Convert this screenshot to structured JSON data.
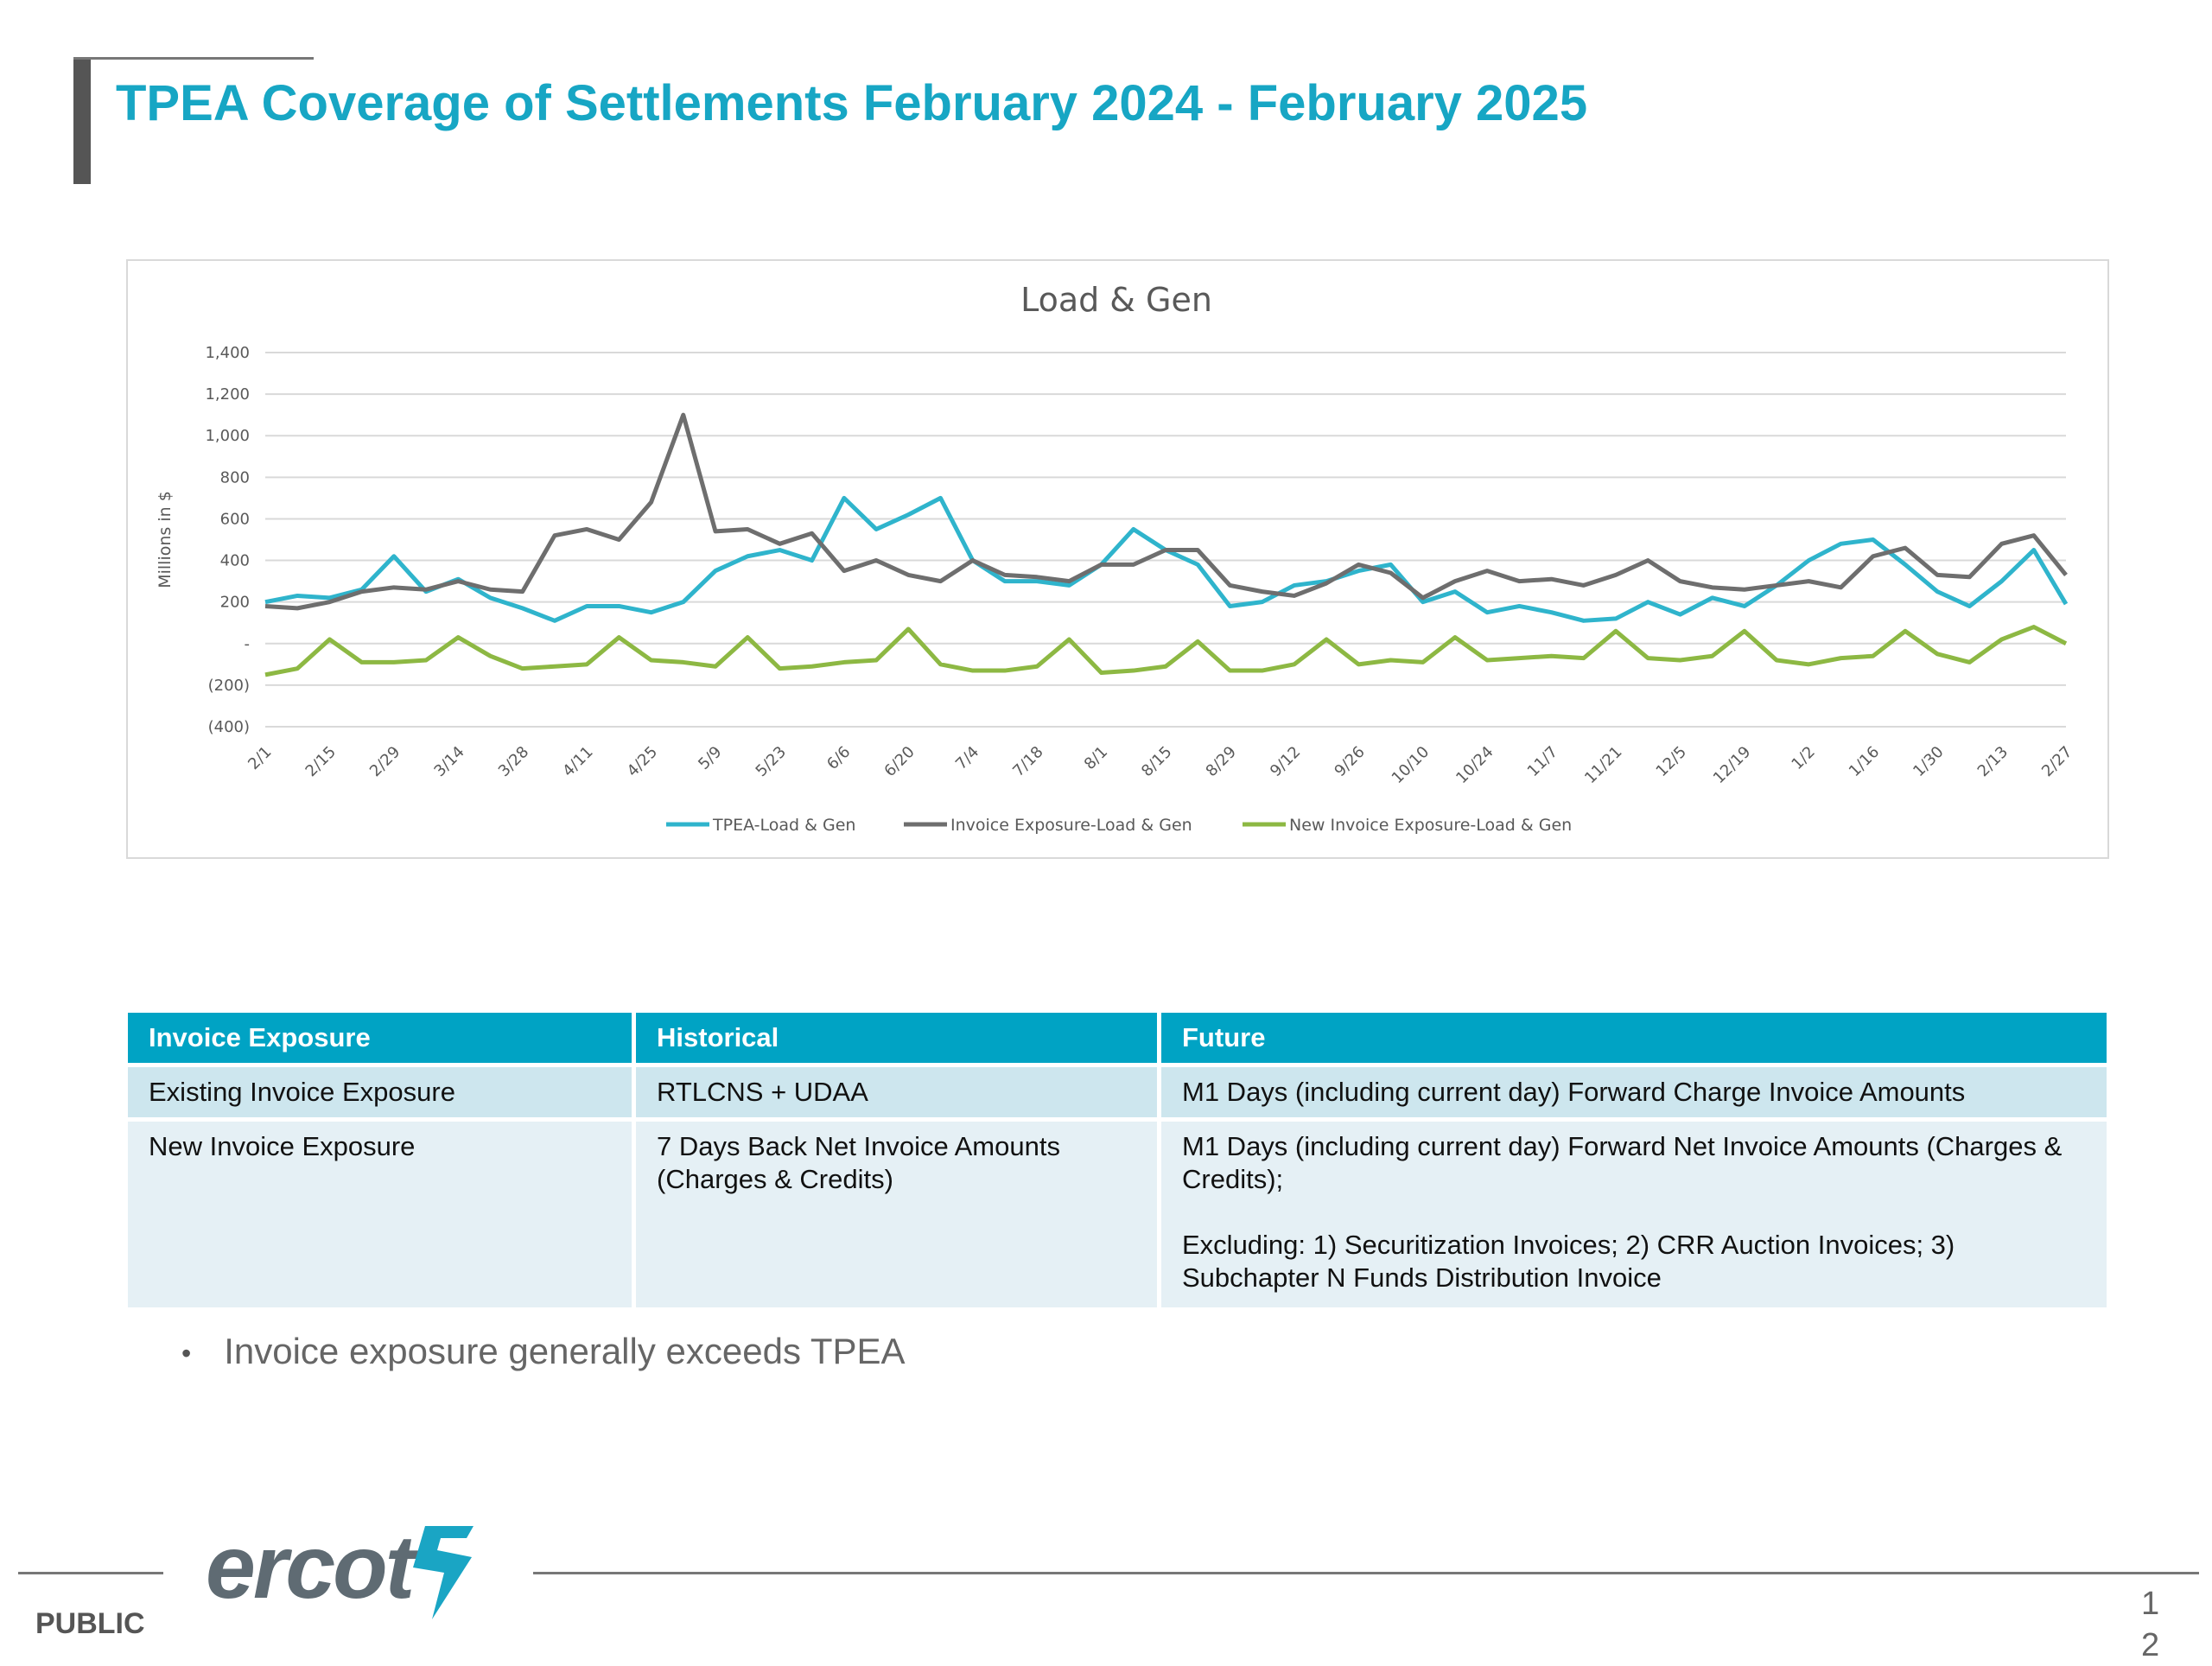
{
  "title": "TPEA Coverage of Settlements February 2024 - February 2025",
  "chart_data": {
    "type": "line",
    "title": "Load & Gen",
    "y_label": "Millions in $",
    "categories": [
      "2/1",
      null,
      "2/15",
      null,
      "2/29",
      null,
      "3/14",
      null,
      "3/28",
      null,
      "4/11",
      null,
      "4/25",
      null,
      "5/9",
      null,
      "5/23",
      null,
      "6/6",
      null,
      "6/20",
      null,
      "7/4",
      null,
      "7/18",
      null,
      "8/1",
      null,
      "8/15",
      null,
      "8/29",
      null,
      "9/12",
      null,
      "9/26",
      null,
      "10/10",
      null,
      "10/24",
      null,
      "11/7",
      null,
      "11/21",
      null,
      "12/5",
      null,
      "12/19",
      null,
      "1/2",
      null,
      "1/16",
      null,
      "1/30",
      null,
      "2/13",
      null,
      "2/27"
    ],
    "series": [
      {
        "name": "TPEA-Load & Gen",
        "color": "#2fb4cc",
        "values": [
          200,
          230,
          220,
          260,
          420,
          250,
          310,
          220,
          170,
          110,
          180,
          180,
          150,
          200,
          350,
          420,
          450,
          400,
          700,
          550,
          620,
          700,
          400,
          300,
          300,
          280,
          380,
          550,
          450,
          380,
          180,
          200,
          280,
          300,
          350,
          380,
          200,
          250,
          150,
          180,
          150,
          110,
          120,
          200,
          140,
          220,
          180,
          280,
          400,
          480,
          500,
          380,
          250,
          180,
          300,
          450,
          190
        ]
      },
      {
        "name": "Invoice Exposure-Load & Gen",
        "color": "#6e6e6e",
        "values": [
          180,
          170,
          200,
          250,
          270,
          260,
          300,
          260,
          250,
          520,
          550,
          500,
          680,
          1100,
          540,
          550,
          480,
          530,
          350,
          400,
          330,
          300,
          400,
          330,
          320,
          300,
          380,
          380,
          450,
          450,
          280,
          250,
          230,
          290,
          380,
          340,
          220,
          300,
          350,
          300,
          310,
          280,
          330,
          400,
          300,
          270,
          260,
          280,
          300,
          270,
          420,
          460,
          330,
          320,
          480,
          520,
          330
        ]
      },
      {
        "name": "New Invoice Exposure-Load & Gen",
        "color": "#8db843",
        "values": [
          -150,
          -120,
          20,
          -90,
          -90,
          -80,
          30,
          -60,
          -120,
          -110,
          -100,
          30,
          -80,
          -90,
          -110,
          30,
          -120,
          -110,
          -90,
          -80,
          70,
          -100,
          -130,
          -130,
          -110,
          20,
          -140,
          -130,
          -110,
          10,
          -130,
          -130,
          -100,
          20,
          -100,
          -80,
          -90,
          30,
          -80,
          -70,
          -60,
          -70,
          60,
          -70,
          -80,
          -60,
          60,
          -80,
          -100,
          -70,
          -60,
          60,
          -50,
          -90,
          20,
          80,
          0
        ]
      }
    ],
    "ylim": [
      -400,
      1400
    ],
    "yticks": [
      {
        "value": -400,
        "label": "(400)"
      },
      {
        "value": -200,
        "label": "(200)"
      },
      {
        "value": 0,
        "label": "-"
      },
      200,
      400,
      600,
      800,
      {
        "value": 1000,
        "label": "1,000"
      },
      {
        "value": 1200,
        "label": "1,200"
      },
      {
        "value": 1400,
        "label": "1,400"
      }
    ],
    "grid": true,
    "legend": "bottom"
  },
  "table": {
    "header": [
      "Invoice Exposure",
      "Historical",
      "Future"
    ],
    "rows": [
      [
        "Existing Invoice Exposure",
        "RTLCNS + UDAA",
        "M1 Days (including current day) Forward Charge Invoice Amounts"
      ],
      [
        "New Invoice Exposure",
        "7 Days Back Net Invoice Amounts (Charges & Credits)",
        [
          "M1 Days (including current day) Forward Net Invoice Amounts (Charges & Credits);",
          "Excluding: 1) Securitization Invoices; 2) CRR Auction Invoices; 3) Subchapter N Funds Distribution Invoice"
        ]
      ]
    ]
  },
  "bullets": [
    "Invoice exposure generally exceeds TPEA"
  ],
  "footer": {
    "logo": "ercot",
    "classification": "PUBLIC",
    "page_number": "12"
  }
}
